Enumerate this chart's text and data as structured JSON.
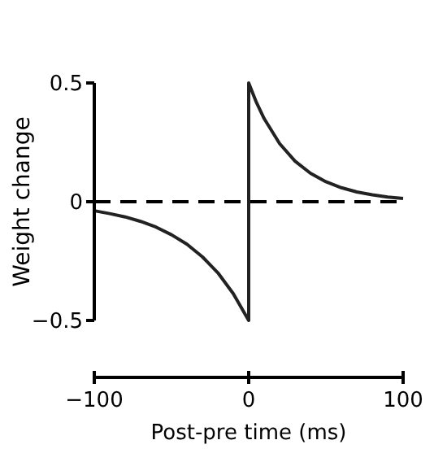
{
  "chart_data": {
    "type": "line",
    "xlabel": "Post-pre time (ms)",
    "ylabel": "Weight change",
    "series": [
      {
        "color": "#222222",
        "x": [
          -100,
          -90,
          -80,
          -70,
          -60,
          -50,
          -40,
          -30,
          -20,
          -10,
          0,
          0,
          5,
          10,
          20,
          30,
          40,
          50,
          60,
          70,
          80,
          90,
          100
        ],
        "values": [
          -0.038,
          -0.05,
          -0.064,
          -0.083,
          -0.107,
          -0.139,
          -0.179,
          -0.232,
          -0.299,
          -0.387,
          -0.5,
          0.5,
          0.418,
          0.35,
          0.245,
          0.171,
          0.12,
          0.084,
          0.059,
          0.041,
          0.029,
          0.02,
          0.014
        ]
      }
    ],
    "xlim": [
      -100,
      100
    ],
    "xticks": [
      -100,
      0,
      100
    ],
    "ylim": [
      -0.5,
      0.5
    ],
    "yticks": [
      -0.5,
      0,
      0.5
    ],
    "ref_lines": [
      {
        "axis": "y",
        "value": 0,
        "line_style": "dashed",
        "color": "#000000"
      }
    ],
    "grid": false,
    "marker": "none",
    "line_style": "solid"
  }
}
